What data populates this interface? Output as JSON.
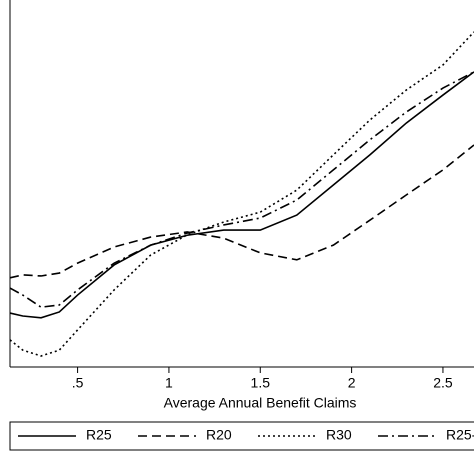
{
  "chart_data": {
    "type": "line",
    "x_label": "Average Annual Benefit Claims",
    "x": [
      0.13,
      0.2,
      0.3,
      0.4,
      0.5,
      0.7,
      0.9,
      1.1,
      1.3,
      1.5,
      1.7,
      1.9,
      2.1,
      2.3,
      2.5,
      2.67
    ],
    "series": [
      {
        "name": "R25",
        "color": "#000000",
        "line_style": "solid",
        "values": [
          14.7,
          13.9,
          13.4,
          15.0,
          19.6,
          27.8,
          33.2,
          35.9,
          37.3,
          37.3,
          41.4,
          49.6,
          57.8,
          66.5,
          74.1,
          80.4
        ]
      },
      {
        "name": "R20",
        "color": "#000000",
        "line_style": "dashed",
        "values": [
          24.3,
          25.1,
          24.8,
          25.6,
          28.3,
          32.7,
          35.4,
          36.8,
          35.1,
          31.1,
          29.2,
          33.2,
          40.0,
          46.9,
          53.7,
          60.5
        ]
      },
      {
        "name": "R30",
        "color": "#000000",
        "line_style": "dotted",
        "values": [
          7.4,
          4.6,
          3.0,
          4.6,
          10.1,
          21.0,
          30.5,
          36.0,
          39.5,
          42.2,
          48.2,
          57.8,
          67.3,
          75.5,
          82.3,
          91.3
        ]
      },
      {
        "name": "R25-",
        "color": "#000000",
        "line_style": "dashdot",
        "values": [
          21.5,
          19.6,
          16.3,
          16.9,
          21.0,
          28.3,
          33.2,
          36.5,
          38.7,
          40.6,
          45.5,
          53.7,
          61.9,
          69.5,
          76.0,
          80.4
        ]
      }
    ],
    "xlim": [
      0.13,
      2.67
    ],
    "xticks": [
      {
        "value": 0.5,
        "label": ".5"
      },
      1,
      1.5,
      2,
      2.5
    ],
    "ylim": [
      0,
      100
    ],
    "legend": "bottom"
  }
}
